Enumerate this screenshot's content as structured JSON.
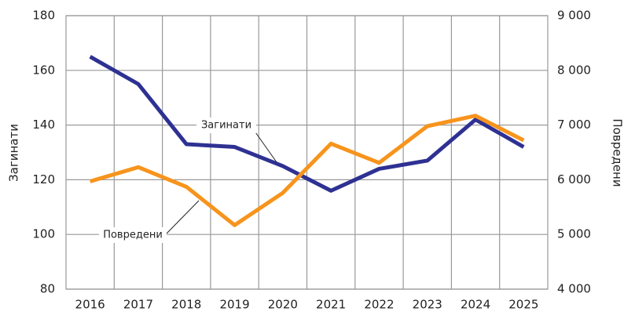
{
  "chart_data": {
    "type": "line",
    "ylabel": "Загинати",
    "y2label": "Повредени",
    "categories": [
      "2016",
      "2017",
      "2018",
      "2019",
      "2020",
      "2021",
      "2022",
      "2023",
      "2024",
      "2025"
    ],
    "series": [
      {
        "name": "Загинати",
        "color": "#2e3192",
        "values": [
          165,
          155,
          133,
          132,
          125,
          116,
          124,
          127,
          142,
          132
        ]
      },
      {
        "name": "Повредени",
        "color": "#f7941d",
        "axis": "y2",
        "values": [
          5970,
          6230,
          5870,
          5170,
          5760,
          6660,
          6310,
          6980,
          7170,
          6720
        ]
      }
    ],
    "ylim": [
      80,
      180
    ],
    "yticks": [
      80,
      100,
      120,
      140,
      160,
      180
    ],
    "y2lim": [
      4000,
      9000
    ],
    "y2ticks": [
      {
        "value": 4000,
        "label": "4 000"
      },
      {
        "value": 5000,
        "label": "5 000"
      },
      {
        "value": 6000,
        "label": "6 000"
      },
      {
        "value": 7000,
        "label": "7 000"
      },
      {
        "value": 8000,
        "label": "8 000"
      },
      {
        "value": 9000,
        "label": "9 000"
      }
    ],
    "grid": true
  }
}
